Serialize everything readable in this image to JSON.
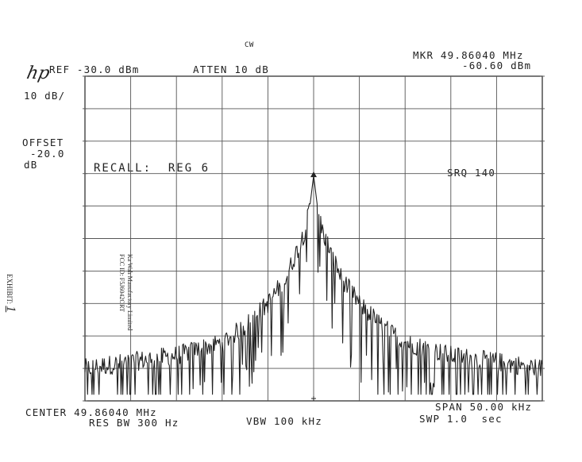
{
  "header": {
    "mode": "CW",
    "ref": "REF -30.0 dBm",
    "atten": "ATTEN 10 dB",
    "mkr_freq": "MKR 49.86040 MHz",
    "mkr_level": "-60.60 dBm",
    "scale": "10 dB/",
    "offset_label": "OFFSET",
    "offset_value": "-20.0",
    "offset_unit": "dB",
    "logo": "hp"
  },
  "annotations": {
    "recall": "RECALL:  REG 6",
    "srq": "SRQ 140"
  },
  "footer": {
    "center": "CENTER 49.86040 MHz",
    "res_bw": "RES BW 300 Hz",
    "vbw": "VBW 100 kHz",
    "span": "SPAN 50.00 kHz",
    "swp": "SWP 1.0  sec"
  },
  "side_label": {
    "lines": [
      "Ka Wah Manufactory Limited",
      "FCC ID: F5J6042ORT"
    ],
    "exhibit_label": "EXHIBIT:",
    "exhibit_number": "1"
  },
  "chart_data": {
    "type": "line",
    "x_unit": "kHz offset from center",
    "y_unit": "dBm",
    "xlim": [
      -25,
      25
    ],
    "ylim": [
      -130,
      -30
    ],
    "grid": true,
    "marker": {
      "x": 0,
      "y": -60.6
    },
    "series": [
      {
        "x": [
          -25,
          -22.5,
          -20,
          -17.5,
          -15,
          -12.5,
          -10,
          -7.5,
          -5,
          -3,
          -2,
          -1,
          -0.5,
          0,
          0.5,
          1,
          2,
          3,
          5,
          7.5,
          10,
          12.5,
          15,
          17.5,
          20,
          22.5,
          25
        ],
        "values": [
          -120,
          -119,
          -118,
          -117,
          -116,
          -114,
          -112,
          -107,
          -100,
          -92,
          -85,
          -78,
          -72,
          -60.6,
          -72,
          -78,
          -85,
          -92,
          -100,
          -107,
          -112,
          -114,
          -116,
          -117,
          -118,
          -119,
          -120
        ]
      }
    ]
  }
}
